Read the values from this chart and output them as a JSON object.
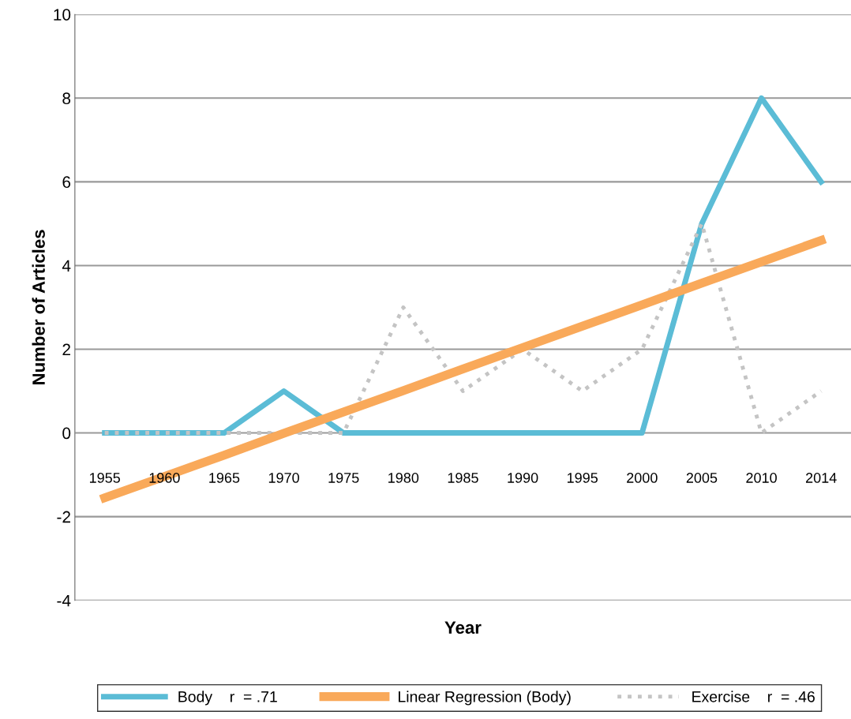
{
  "chart_data": {
    "type": "line",
    "xlabel": "Year",
    "ylabel": "Number of Articles",
    "categories": [
      "1955",
      "1960",
      "1965",
      "1970",
      "1975",
      "1980",
      "1985",
      "1990",
      "1995",
      "2000",
      "2005",
      "2010",
      "2014"
    ],
    "series": [
      {
        "name": "Body    r  = .71",
        "color": "#5bbcd6",
        "line_style": "solid",
        "values": [
          0,
          0,
          0,
          1,
          0,
          0,
          0,
          0,
          0,
          0,
          5,
          8,
          6
        ]
      },
      {
        "name": "Linear Regression (Body)",
        "color": "#f9a95a",
        "line_style": "solid",
        "values": [
          -1.55,
          -1.04,
          -0.53,
          -0.01,
          0.5,
          1.01,
          1.53,
          2.04,
          2.55,
          3.06,
          3.58,
          4.09,
          4.6
        ]
      },
      {
        "name": "Exercise    r  = .46",
        "color": "#c4c4c4",
        "line_style": "dotted",
        "values": [
          0,
          0,
          0,
          0,
          0,
          3,
          1,
          2,
          1,
          2,
          5,
          0,
          1
        ]
      }
    ],
    "ylim": [
      -4,
      10
    ],
    "yticks": [
      -4,
      -2,
      0,
      2,
      4,
      6,
      8,
      10
    ],
    "grid": "y",
    "legend": "bottom"
  }
}
